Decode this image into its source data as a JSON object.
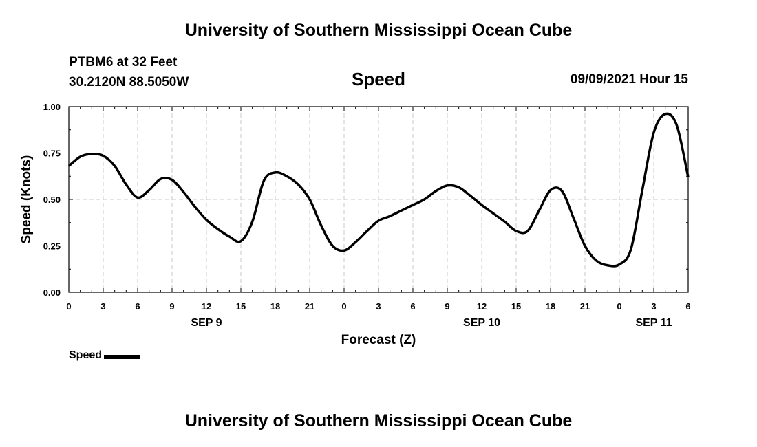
{
  "header": {
    "title": "University of Southern Mississippi Ocean Cube",
    "station": "PTBM6 at 32 Feet",
    "coords": "30.2120N  88.5050W",
    "chart_name": "Speed",
    "date": "09/09/2021 Hour 15"
  },
  "footer": {
    "title": "University of Southern Mississippi Ocean Cube"
  },
  "legend": {
    "label": "Speed"
  },
  "chart_data": {
    "type": "line",
    "title": "Speed",
    "xlabel": "Forecast (Z)",
    "ylabel": "Speed (Knots)",
    "xlim": [
      0,
      54
    ],
    "ylim": [
      0,
      1
    ],
    "grid": true,
    "x_ticks": [
      0,
      3,
      6,
      9,
      12,
      15,
      18,
      21,
      24,
      27,
      30,
      33,
      36,
      39,
      42,
      45,
      48,
      51,
      54
    ],
    "x_tick_labels": [
      "0",
      "3",
      "6",
      "9",
      "12",
      "15",
      "18",
      "21",
      "0",
      "3",
      "6",
      "9",
      "12",
      "15",
      "18",
      "21",
      "0",
      "3",
      "6"
    ],
    "y_ticks": [
      0,
      0.25,
      0.5,
      0.75,
      1.0
    ],
    "y_tick_labels": [
      "0.00",
      "0.25",
      "0.50",
      "0.75",
      "1.00"
    ],
    "day_labels": [
      {
        "text": "SEP 9",
        "x": 12
      },
      {
        "text": "SEP 10",
        "x": 36
      },
      {
        "text": "SEP 11",
        "x": 51
      }
    ],
    "series": [
      {
        "name": "Speed",
        "x": [
          0,
          1,
          2,
          3,
          4,
          5,
          6,
          7,
          8,
          9,
          10,
          11,
          12,
          13,
          14,
          15,
          16,
          17,
          18,
          19,
          20,
          21,
          22,
          23,
          24,
          25,
          26,
          27,
          28,
          29,
          30,
          31,
          32,
          33,
          34,
          35,
          36,
          37,
          38,
          39,
          40,
          41,
          42,
          43,
          44,
          45,
          46,
          47,
          48,
          49,
          50,
          51,
          52,
          53,
          54
        ],
        "values": [
          0.68,
          0.73,
          0.745,
          0.735,
          0.68,
          0.58,
          0.51,
          0.55,
          0.61,
          0.605,
          0.54,
          0.46,
          0.39,
          0.34,
          0.3,
          0.275,
          0.38,
          0.6,
          0.645,
          0.625,
          0.58,
          0.5,
          0.36,
          0.25,
          0.225,
          0.27,
          0.33,
          0.385,
          0.41,
          0.44,
          0.47,
          0.5,
          0.545,
          0.575,
          0.565,
          0.52,
          0.47,
          0.425,
          0.38,
          0.33,
          0.33,
          0.44,
          0.55,
          0.545,
          0.4,
          0.25,
          0.17,
          0.145,
          0.15,
          0.23,
          0.55,
          0.86,
          0.96,
          0.9,
          0.62
        ]
      }
    ]
  }
}
